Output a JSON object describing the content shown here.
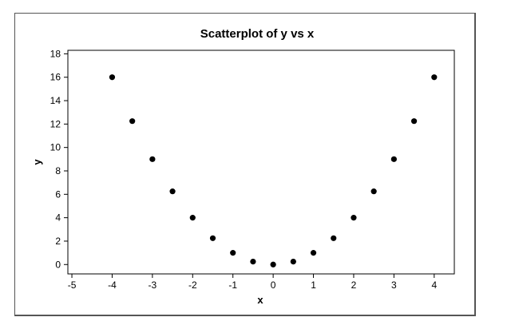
{
  "chart_data": {
    "type": "scatter",
    "title": "Scatterplot of y vs x",
    "xlabel": "x",
    "ylabel": "y",
    "xlim": [
      -5.1,
      4.5
    ],
    "ylim": [
      -0.8,
      18.3
    ],
    "x_ticks": [
      -5,
      -4,
      -3,
      -2,
      -1,
      0,
      1,
      2,
      3,
      4
    ],
    "y_ticks": [
      0,
      2,
      4,
      6,
      8,
      10,
      12,
      14,
      16,
      18
    ],
    "grid": false,
    "marker_color": "#000000",
    "points": [
      {
        "x": -4.0,
        "y": 16.0
      },
      {
        "x": -3.5,
        "y": 12.25
      },
      {
        "x": -3.0,
        "y": 9.0
      },
      {
        "x": -2.5,
        "y": 6.25
      },
      {
        "x": -2.0,
        "y": 4.0
      },
      {
        "x": -1.5,
        "y": 2.25
      },
      {
        "x": -1.0,
        "y": 1.0
      },
      {
        "x": -0.5,
        "y": 0.25
      },
      {
        "x": 0.0,
        "y": 0.0
      },
      {
        "x": 0.5,
        "y": 0.25
      },
      {
        "x": 1.0,
        "y": 1.0
      },
      {
        "x": 1.5,
        "y": 2.25
      },
      {
        "x": 2.0,
        "y": 4.0
      },
      {
        "x": 2.5,
        "y": 6.25
      },
      {
        "x": 3.0,
        "y": 9.0
      },
      {
        "x": 3.5,
        "y": 12.25
      },
      {
        "x": 4.0,
        "y": 16.0
      }
    ]
  }
}
